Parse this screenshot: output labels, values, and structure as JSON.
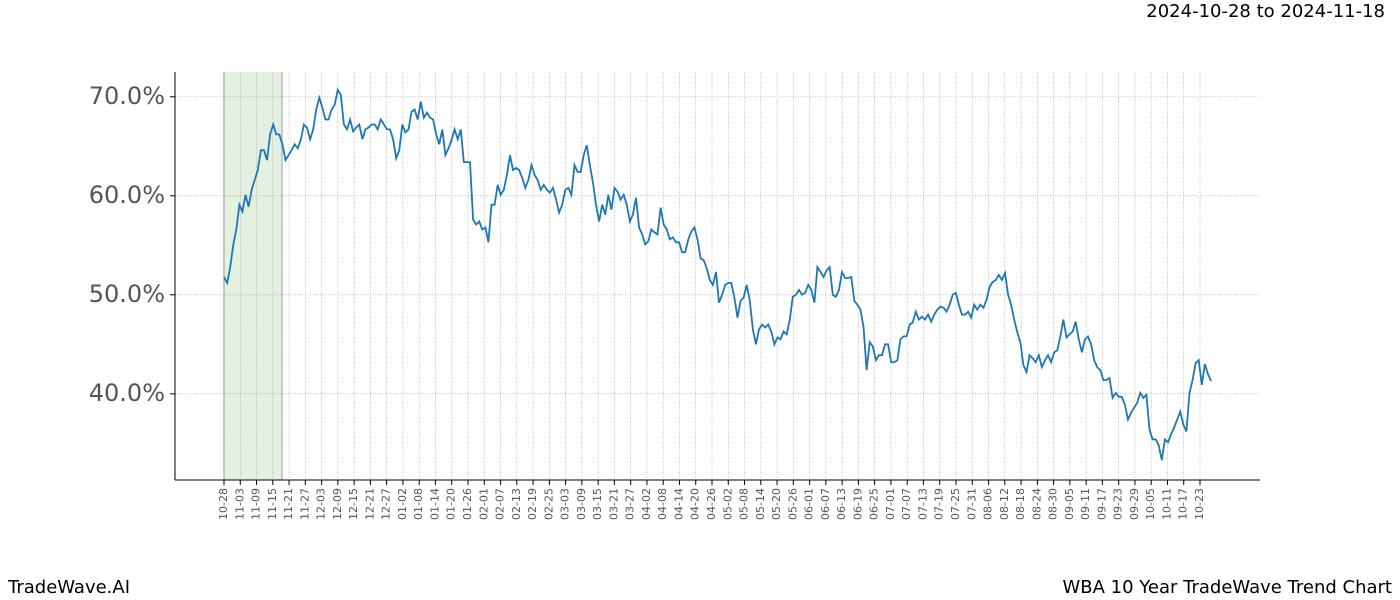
{
  "chart_data": {
    "type": "line",
    "title": "2024-10-28 to 2024-11-18",
    "footer_left": "TradeWave.AI",
    "footer_right": "WBA 10 Year TradeWave Trend Chart",
    "ylim": [
      31.3,
      72.5
    ],
    "yticks": [
      {
        "value": 40,
        "label": "40.0%"
      },
      {
        "value": 50,
        "label": "50.0%"
      },
      {
        "value": 60,
        "label": "60.0%"
      },
      {
        "value": 70,
        "label": "70.0%"
      }
    ],
    "xticks": [
      "10-28",
      "11-03",
      "11-09",
      "11-15",
      "11-21",
      "11-27",
      "12-03",
      "12-09",
      "12-15",
      "12-21",
      "12-27",
      "01-02",
      "01-08",
      "01-14",
      "01-20",
      "01-26",
      "02-01",
      "02-07",
      "02-13",
      "02-19",
      "02-25",
      "03-03",
      "03-09",
      "03-15",
      "03-21",
      "03-27",
      "04-02",
      "04-08",
      "04-14",
      "04-20",
      "04-26",
      "05-02",
      "05-08",
      "05-14",
      "05-20",
      "05-26",
      "06-01",
      "06-07",
      "06-13",
      "06-19",
      "06-25",
      "07-01",
      "07-07",
      "07-13",
      "07-19",
      "07-25",
      "07-31",
      "08-06",
      "08-12",
      "08-18",
      "08-24",
      "08-30",
      "09-05",
      "09-11",
      "09-17",
      "09-23",
      "09-29",
      "10-05",
      "10-11",
      "10-17",
      "10-23"
    ],
    "grid": true,
    "highlight_color": "#d9ead3",
    "series": [
      {
        "color": "#1f77b4",
        "values": [
          51.8,
          51.2,
          52.7,
          55,
          56.6,
          59.1,
          58.4,
          60.1,
          58.9,
          60.6,
          61.6,
          62.6,
          64.6,
          64.6,
          63.6,
          66.2,
          67.2,
          66.2,
          66.2,
          65.2,
          63.6,
          64.1,
          64.6,
          65.2,
          64.8,
          65.7,
          67.2,
          66.9,
          65.7,
          66.7,
          68.7,
          69.9,
          68.9,
          67.7,
          67.7,
          68.7,
          69.2,
          70.7,
          70.2,
          67.2,
          66.7,
          67.7,
          66.5,
          66.9,
          67.2,
          65.7,
          66.7,
          66.9,
          67.2,
          67.2,
          66.7,
          67.7,
          67.2,
          66.7,
          66.7,
          65.7,
          63.8,
          64.6,
          67.2,
          66.4,
          66.7,
          68.5,
          68.7,
          67.7,
          69.5,
          67.9,
          68.4,
          67.9,
          67.7,
          66.2,
          65.2,
          66.7,
          64.1,
          64.8,
          65.6,
          66.7,
          65.7,
          66.7,
          63.4,
          63.4,
          63.4,
          57.6,
          57.1,
          57.4,
          56.6,
          56.8,
          55.3,
          59.1,
          59.1,
          61.1,
          60.1,
          60.6,
          62.1,
          64.1,
          62.6,
          62.8,
          62.6,
          61.8,
          60.8,
          61.6,
          63.1,
          62.1,
          61.6,
          60.6,
          61.1,
          60.6,
          60.3,
          60.8,
          59.6,
          58.3,
          59.1,
          60.6,
          60.8,
          60.1,
          63.1,
          62.4,
          62.4,
          64.1,
          65.1,
          63.1,
          61.3,
          59.1,
          57.4,
          59.1,
          58.1,
          60.1,
          58.6,
          60.8,
          60.4,
          59.6,
          60.1,
          59.1,
          57.4,
          58.1,
          59.8,
          56.8,
          56.1,
          55.1,
          55.4,
          56.6,
          56.3,
          56.1,
          58.8,
          57.1,
          56.6,
          55.6,
          55.8,
          55.3,
          55.3,
          54.3,
          54.3,
          55.6,
          56.4,
          56.8,
          55.6,
          53.7,
          53.5,
          52.7,
          51.5,
          51,
          52.3,
          49.2,
          50,
          51,
          51.2,
          51.2,
          49.7,
          47.7,
          49.4,
          49.7,
          51,
          49.4,
          46.5,
          45,
          46.5,
          47,
          46.7,
          47,
          46.3,
          45,
          45.7,
          45.5,
          46.3,
          46,
          47.5,
          49.8,
          50,
          50.5,
          50,
          50.2,
          51,
          50.5,
          49.2,
          52.8,
          52.3,
          51.8,
          52.5,
          52.8,
          50,
          49.8,
          50.5,
          52.3,
          51.7,
          51.7,
          51.8,
          49.4,
          49,
          48.5,
          46.7,
          42.4,
          45.2,
          44.8,
          43.4,
          43.9,
          43.9,
          45,
          45,
          43.2,
          43.2,
          43.4,
          45.5,
          45.8,
          45.8,
          47,
          47.2,
          48.3,
          47.5,
          47.8,
          47.5,
          48,
          47.3,
          48,
          48.5,
          48.8,
          48.7,
          48.3,
          49,
          50,
          50.2,
          49,
          48,
          48,
          48.3,
          47.7,
          49,
          48.5,
          49,
          48.7,
          49.5,
          50.8,
          51.3,
          51.5,
          52,
          51.5,
          52.2,
          50,
          49,
          47.5,
          46.2,
          45.2,
          42.9,
          42.2,
          43.9,
          43.6,
          43.2,
          43.9,
          42.7,
          43.4,
          43.9,
          43.2,
          44.2,
          44.4,
          45.8,
          47.5,
          45.7,
          46,
          46.3,
          47.3,
          45.5,
          44.2,
          45.5,
          45.8,
          45,
          43.4,
          42.7,
          42.4,
          41.4,
          41.4,
          41.6,
          39.6,
          40.1,
          39.7,
          39.7,
          38.9,
          37.4,
          38.1,
          38.6,
          39.1,
          40.1,
          39.6,
          39.9,
          36.4,
          35.4,
          35.4,
          34.8,
          33.3,
          35.4,
          35.1,
          35.9,
          36.6,
          37.4,
          38.2,
          36.9,
          36.2,
          40.1,
          41.4,
          43.1,
          43.4,
          40.9,
          43,
          42,
          41.3
        ]
      }
    ]
  }
}
